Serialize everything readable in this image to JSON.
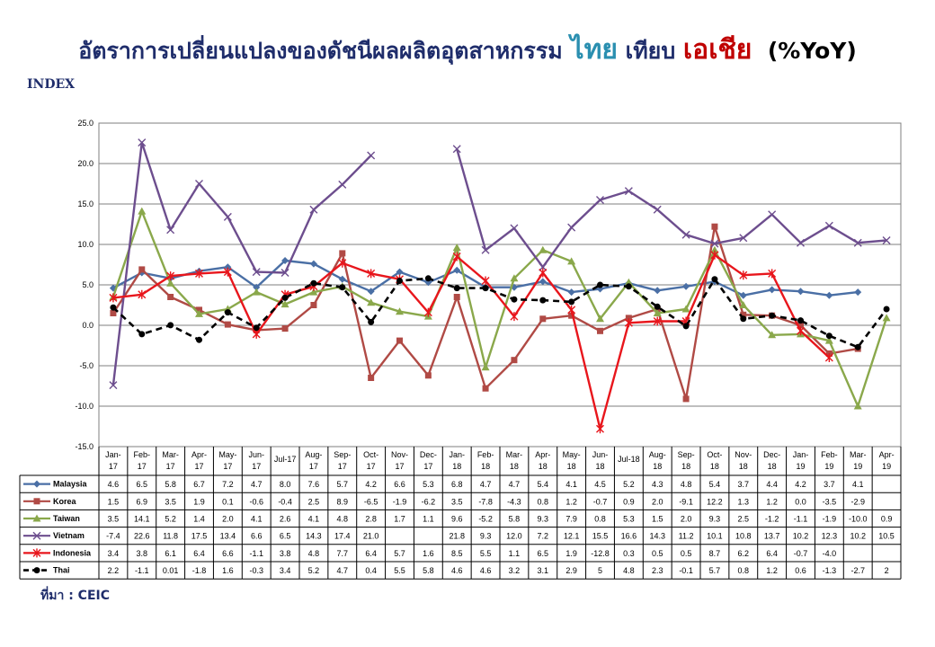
{
  "title": {
    "part1": "อัตราการเปลี่ยนแปลงของดัชนีผลผลิตอุตสาหกรรม",
    "part2": "ไทย",
    "part3": "เทียบ",
    "part4": "เอเชีย",
    "part5": "(%YoY)"
  },
  "index_label": "INDEX",
  "source": "ที่มา : CEIC",
  "chart_data": {
    "type": "line",
    "categories": [
      [
        "Jan-",
        "17"
      ],
      [
        "Feb-",
        "17"
      ],
      [
        "Mar-",
        "17"
      ],
      [
        "Apr-",
        "17"
      ],
      [
        "May-",
        "17"
      ],
      [
        "Jun-",
        "17"
      ],
      [
        "Jul-17"
      ],
      [
        "Aug-",
        "17"
      ],
      [
        "Sep-",
        "17"
      ],
      [
        "Oct-",
        "17"
      ],
      [
        "Nov-",
        "17"
      ],
      [
        "Dec-",
        "17"
      ],
      [
        "Jan-",
        "18"
      ],
      [
        "Feb-",
        "18"
      ],
      [
        "Mar-",
        "18"
      ],
      [
        "Apr-",
        "18"
      ],
      [
        "May-",
        "18"
      ],
      [
        "Jun-",
        "18"
      ],
      [
        "Jul-18"
      ],
      [
        "Aug-",
        "18"
      ],
      [
        "Sep-",
        "18"
      ],
      [
        "Oct-",
        "18"
      ],
      [
        "Nov-",
        "18"
      ],
      [
        "Dec-",
        "18"
      ],
      [
        "Jan-",
        "19"
      ],
      [
        "Feb-",
        "19"
      ],
      [
        "Mar-",
        "19"
      ],
      [
        "Apr-",
        "19"
      ]
    ],
    "ylim": [
      -15,
      25
    ],
    "yticks": [
      "25.0",
      "20.0",
      "15.0",
      "10.0",
      "5.0",
      "0.0",
      "-5.0",
      "-10.0",
      "-15.0"
    ],
    "grid": true,
    "legend": "table-below",
    "series": [
      {
        "name": "Malaysia",
        "color": "#4a6fa5",
        "marker": "diamond",
        "dash": false,
        "values": [
          4.6,
          6.5,
          5.8,
          6.7,
          7.2,
          4.7,
          8.0,
          7.6,
          5.7,
          4.2,
          6.6,
          5.3,
          6.8,
          4.7,
          4.7,
          5.4,
          4.1,
          4.5,
          5.2,
          4.3,
          4.8,
          5.4,
          3.7,
          4.4,
          4.2,
          3.7,
          4.1,
          null
        ],
        "labels": [
          "4.6",
          "6.5",
          "5.8",
          "6.7",
          "7.2",
          "4.7",
          "8.0",
          "7.6",
          "5.7",
          "4.2",
          "6.6",
          "5.3",
          "6.8",
          "4.7",
          "4.7",
          "5.4",
          "4.1",
          "4.5",
          "5.2",
          "4.3",
          "4.8",
          "5.4",
          "3.7",
          "4.4",
          "4.2",
          "3.7",
          "4.1",
          ""
        ]
      },
      {
        "name": "Korea",
        "color": "#b04a45",
        "marker": "square",
        "dash": false,
        "values": [
          1.5,
          6.9,
          3.5,
          1.9,
          0.1,
          -0.6,
          -0.4,
          2.5,
          8.9,
          -6.5,
          -1.9,
          -6.2,
          3.5,
          -7.8,
          -4.3,
          0.8,
          1.2,
          -0.7,
          0.9,
          2.0,
          -9.1,
          12.2,
          1.3,
          1.2,
          0.0,
          -3.5,
          -2.9,
          null
        ],
        "labels": [
          "1.5",
          "6.9",
          "3.5",
          "1.9",
          "0.1",
          "-0.6",
          "-0.4",
          "2.5",
          "8.9",
          "-6.5",
          "-1.9",
          "-6.2",
          "3.5",
          "-7.8",
          "-4.3",
          "0.8",
          "1.2",
          "-0.7",
          "0.9",
          "2.0",
          "-9.1",
          "12.2",
          "1.3",
          "1.2",
          "0.0",
          "-3.5",
          "-2.9",
          ""
        ]
      },
      {
        "name": "Taiwan",
        "color": "#8aa84b",
        "marker": "triangle",
        "dash": false,
        "values": [
          3.5,
          14.1,
          5.2,
          1.4,
          2.0,
          4.1,
          2.6,
          4.1,
          4.8,
          2.8,
          1.7,
          1.1,
          9.6,
          -5.2,
          5.8,
          9.3,
          7.9,
          0.8,
          5.3,
          1.5,
          2.0,
          9.3,
          2.5,
          -1.2,
          -1.1,
          -1.9,
          -10.0,
          0.9
        ],
        "labels": [
          "3.5",
          "14.1",
          "5.2",
          "1.4",
          "2.0",
          "4.1",
          "2.6",
          "4.1",
          "4.8",
          "2.8",
          "1.7",
          "1.1",
          "9.6",
          "-5.2",
          "5.8",
          "9.3",
          "7.9",
          "0.8",
          "5.3",
          "1.5",
          "2.0",
          "9.3",
          "2.5",
          "-1.2",
          "-1.1",
          "-1.9",
          "-10.0",
          "0.9"
        ]
      },
      {
        "name": "Vietnam",
        "color": "#6d4e8e",
        "marker": "x",
        "dash": false,
        "values": [
          -7.4,
          22.6,
          11.8,
          17.5,
          13.4,
          6.6,
          6.5,
          14.3,
          17.4,
          21.0,
          null,
          null,
          21.8,
          9.3,
          12.0,
          7.2,
          12.1,
          15.5,
          16.6,
          14.3,
          11.2,
          10.1,
          10.8,
          13.7,
          10.2,
          12.3,
          10.2,
          10.5
        ],
        "labels": [
          "-7.4",
          "22.6",
          "11.8",
          "17.5",
          "13.4",
          "6.6",
          "6.5",
          "14.3",
          "17.4",
          "21.0",
          "",
          "",
          "21.8",
          "9.3",
          "12.0",
          "7.2",
          "12.1",
          "15.5",
          "16.6",
          "14.3",
          "11.2",
          "10.1",
          "10.8",
          "13.7",
          "10.2",
          "12.3",
          "10.2",
          "10.5"
        ]
      },
      {
        "name": "Indonesia",
        "color": "#e8161c",
        "marker": "star",
        "dash": false,
        "values": [
          3.4,
          3.8,
          6.1,
          6.4,
          6.6,
          -1.1,
          3.8,
          4.8,
          7.7,
          6.4,
          5.7,
          1.6,
          8.5,
          5.5,
          1.1,
          6.5,
          1.9,
          -12.8,
          0.3,
          0.5,
          0.5,
          8.7,
          6.2,
          6.4,
          -0.7,
          -4.0,
          null,
          null
        ],
        "labels": [
          "3.4",
          "3.8",
          "6.1",
          "6.4",
          "6.6",
          "-1.1",
          "3.8",
          "4.8",
          "7.7",
          "6.4",
          "5.7",
          "1.6",
          "8.5",
          "5.5",
          "1.1",
          "6.5",
          "1.9",
          "-12.8",
          "0.3",
          "0.5",
          "0.5",
          "8.7",
          "6.2",
          "6.4",
          "-0.7",
          "-4.0",
          "",
          ""
        ]
      },
      {
        "name": "Thai",
        "color": "#000000",
        "marker": "circle",
        "dash": true,
        "values": [
          2.2,
          -1.1,
          0.01,
          -1.8,
          1.6,
          -0.3,
          3.4,
          5.2,
          4.7,
          0.4,
          5.5,
          5.8,
          4.6,
          4.6,
          3.2,
          3.1,
          2.9,
          5,
          4.8,
          2.3,
          -0.1,
          5.7,
          0.8,
          1.2,
          0.6,
          -1.3,
          -2.7,
          2
        ],
        "labels": [
          "2.2",
          "-1.1",
          "0.01",
          "-1.8",
          "1.6",
          "-0.3",
          "3.4",
          "5.2",
          "4.7",
          "0.4",
          "5.5",
          "5.8",
          "4.6",
          "4.6",
          "3.2",
          "3.1",
          "2.9",
          "5",
          "4.8",
          "2.3",
          "-0.1",
          "5.7",
          "0.8",
          "1.2",
          "0.6",
          "-1.3",
          "-2.7",
          "2"
        ]
      }
    ]
  }
}
